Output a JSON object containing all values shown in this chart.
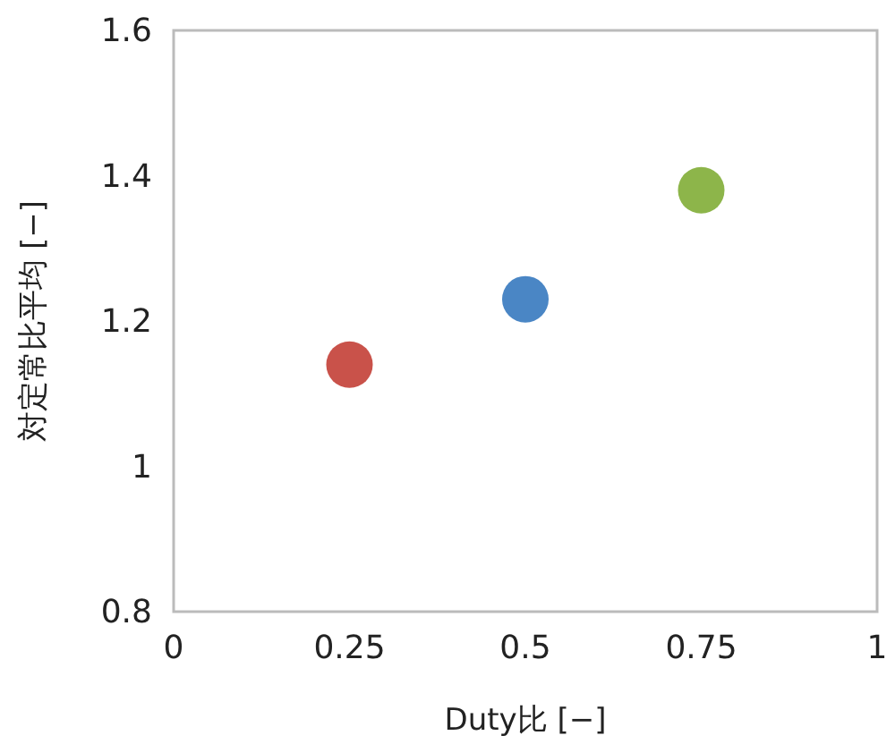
{
  "chart_data": {
    "type": "scatter",
    "xlabel": "Duty比 [−]",
    "ylabel": "対定常比平均 [−]",
    "x": [
      0.25,
      0.5,
      0.75
    ],
    "values": [
      1.14,
      1.23,
      1.38
    ],
    "colors": [
      "#c9524a",
      "#4a86c5",
      "#8db54a"
    ],
    "marker": "circle",
    "xlim": [
      0,
      1
    ],
    "ylim": [
      0.8,
      1.6
    ],
    "xticks": [
      0,
      0.25,
      0.5,
      0.75,
      1
    ],
    "yticks": [
      0.8,
      1,
      1.2,
      1.4,
      1.6
    ]
  }
}
